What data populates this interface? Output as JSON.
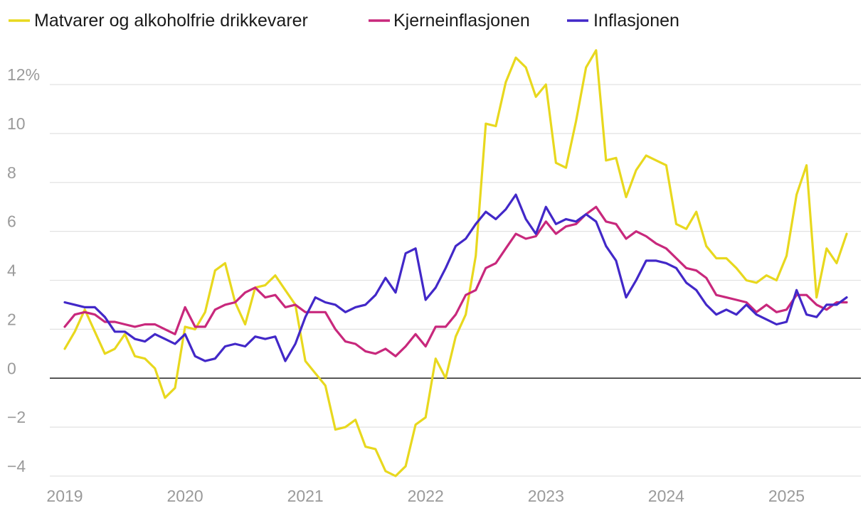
{
  "chart_data": {
    "type": "line",
    "title": "",
    "xlabel": "",
    "ylabel": "",
    "ylim": [
      -4,
      13.5
    ],
    "y_ticks": [
      -4,
      -2,
      0,
      2,
      4,
      6,
      8,
      10,
      12
    ],
    "y_tick_labels": [
      "−4",
      "−2",
      "0",
      "2",
      "4",
      "6",
      "8",
      "10",
      "12%"
    ],
    "x_range": [
      2019.0,
      2025.5
    ],
    "x_ticks": [
      2019,
      2020,
      2021,
      2022,
      2023,
      2024,
      2025
    ],
    "x_tick_labels": [
      "2019",
      "2020",
      "2021",
      "2022",
      "2023",
      "2024",
      "2025"
    ],
    "x_start": 2019.0,
    "x_step_months": 1,
    "legend_position": "top-left",
    "series": [
      {
        "name": "Matvarer og alkoholfrie drikkevarer",
        "color": "#e8d81e",
        "values": [
          1.2,
          1.9,
          2.8,
          1.9,
          1.0,
          1.2,
          1.8,
          0.9,
          0.8,
          0.4,
          -0.8,
          -0.4,
          2.1,
          2.0,
          2.7,
          4.4,
          4.7,
          3.1,
          2.2,
          3.7,
          3.8,
          4.2,
          3.6,
          3.0,
          0.7,
          0.2,
          -0.3,
          -2.1,
          -2.0,
          -1.7,
          -2.8,
          -2.9,
          -3.8,
          -4.0,
          -3.6,
          -1.9,
          -1.6,
          0.8,
          0.0,
          1.7,
          2.6,
          5.0,
          10.4,
          10.3,
          12.1,
          13.1,
          12.7,
          11.5,
          12.0,
          8.8,
          8.6,
          10.5,
          12.7,
          13.4,
          8.9,
          9.0,
          7.4,
          8.5,
          9.1,
          8.9,
          8.7,
          6.3,
          6.1,
          6.8,
          5.4,
          4.9,
          4.9,
          4.5,
          4.0,
          3.9,
          4.2,
          4.0,
          5.0,
          7.5,
          8.7,
          3.3,
          5.3,
          4.7,
          5.9
        ]
      },
      {
        "name": "Kjerneinflasjonen",
        "color": "#c8287c",
        "values": [
          2.1,
          2.6,
          2.7,
          2.6,
          2.3,
          2.3,
          2.2,
          2.1,
          2.2,
          2.2,
          2.0,
          1.8,
          2.9,
          2.1,
          2.1,
          2.8,
          3.0,
          3.1,
          3.5,
          3.7,
          3.3,
          3.4,
          2.9,
          3.0,
          2.7,
          2.7,
          2.7,
          2.0,
          1.5,
          1.4,
          1.1,
          1.0,
          1.2,
          0.9,
          1.3,
          1.8,
          1.3,
          2.1,
          2.1,
          2.6,
          3.4,
          3.6,
          4.5,
          4.7,
          5.3,
          5.9,
          5.7,
          5.8,
          6.4,
          5.9,
          6.2,
          6.3,
          6.7,
          7.0,
          6.4,
          6.3,
          5.7,
          6.0,
          5.8,
          5.5,
          5.3,
          4.9,
          4.5,
          4.4,
          4.1,
          3.4,
          3.3,
          3.2,
          3.1,
          2.7,
          3.0,
          2.7,
          2.8,
          3.4,
          3.4,
          3.0,
          2.8,
          3.1,
          3.1
        ]
      },
      {
        "name": "Inflasjonen",
        "color": "#4228c8",
        "values": [
          3.1,
          3.0,
          2.9,
          2.9,
          2.5,
          1.9,
          1.9,
          1.6,
          1.5,
          1.8,
          1.6,
          1.4,
          1.8,
          0.9,
          0.7,
          0.8,
          1.3,
          1.4,
          1.3,
          1.7,
          1.6,
          1.7,
          0.7,
          1.4,
          2.5,
          3.3,
          3.1,
          3.0,
          2.7,
          2.9,
          3.0,
          3.4,
          4.1,
          3.5,
          5.1,
          5.3,
          3.2,
          3.7,
          4.5,
          5.4,
          5.7,
          6.3,
          6.8,
          6.5,
          6.9,
          7.5,
          6.5,
          5.9,
          7.0,
          6.3,
          6.5,
          6.4,
          6.7,
          6.4,
          5.4,
          4.8,
          3.3,
          4.0,
          4.8,
          4.8,
          4.7,
          4.5,
          3.9,
          3.6,
          3.0,
          2.6,
          2.8,
          2.6,
          3.0,
          2.6,
          2.4,
          2.2,
          2.3,
          3.6,
          2.6,
          2.5,
          3.0,
          3.0,
          3.3
        ]
      }
    ]
  }
}
